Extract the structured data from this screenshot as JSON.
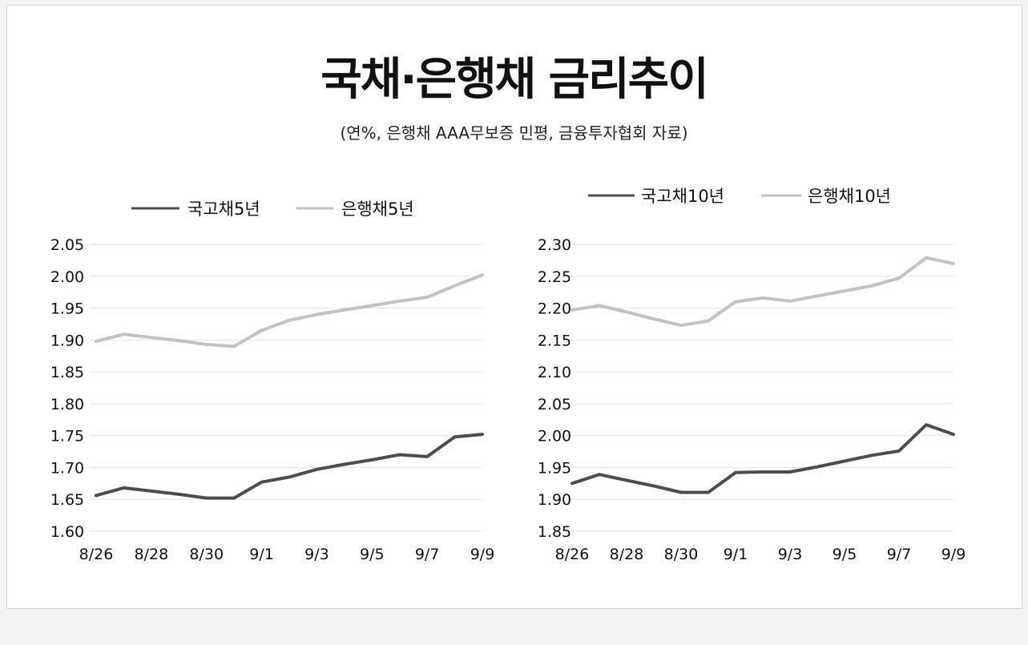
{
  "title": "국채·은행채 금리추이",
  "subtitle": "(연%, 은행채 AAA무보증 민평, 금융투자협회 자료)",
  "colors": {
    "dark": "#4d4d4d",
    "light": "#c2c2c2",
    "grid": "#e3e3e3"
  },
  "chart_data": [
    {
      "type": "line",
      "x": [
        "8/26",
        "8/27",
        "8/28",
        "8/29",
        "8/30",
        "8/31",
        "9/1",
        "9/2",
        "9/3",
        "9/4",
        "9/5",
        "9/6",
        "9/7",
        "9/8",
        "9/9"
      ],
      "xticks": [
        "8/26",
        "8/28",
        "8/30",
        "9/1",
        "9/3",
        "9/5",
        "9/7",
        "9/9"
      ],
      "yticks": [
        "2.05",
        "2.00",
        "1.95",
        "1.90",
        "1.85",
        "1.80",
        "1.75",
        "1.70",
        "1.65",
        "1.60"
      ],
      "ylim": [
        1.6,
        2.05
      ],
      "series": [
        {
          "name": "국고채5년",
          "color": "dark",
          "values": [
            1.656,
            1.668,
            1.663,
            1.658,
            1.652,
            1.652,
            1.677,
            1.685,
            1.697,
            1.705,
            1.712,
            1.72,
            1.717,
            1.748,
            1.752
          ]
        },
        {
          "name": "은행채5년",
          "color": "light",
          "values": [
            1.898,
            1.909,
            1.904,
            1.899,
            1.893,
            1.89,
            1.915,
            1.931,
            1.94,
            1.947,
            1.954,
            1.961,
            1.967,
            1.985,
            2.002
          ]
        }
      ]
    },
    {
      "type": "line",
      "x": [
        "8/26",
        "8/27",
        "8/28",
        "8/29",
        "8/30",
        "8/31",
        "9/1",
        "9/2",
        "9/3",
        "9/4",
        "9/5",
        "9/6",
        "9/7",
        "9/8",
        "9/9"
      ],
      "xticks": [
        "8/26",
        "8/28",
        "8/30",
        "9/1",
        "9/3",
        "9/5",
        "9/7",
        "9/9"
      ],
      "yticks": [
        "2.30",
        "2.25",
        "2.20",
        "2.15",
        "2.10",
        "2.05",
        "2.00",
        "1.95",
        "1.90",
        "1.85"
      ],
      "ylim": [
        1.85,
        2.3
      ],
      "series": [
        {
          "name": "국고채10년",
          "color": "dark",
          "values": [
            1.925,
            1.939,
            1.93,
            1.921,
            1.911,
            1.911,
            1.942,
            1.943,
            1.943,
            1.951,
            1.96,
            1.969,
            1.976,
            2.017,
            2.002
          ]
        },
        {
          "name": "은행채10년",
          "color": "light",
          "values": [
            2.197,
            2.204,
            2.194,
            2.183,
            2.173,
            2.18,
            2.21,
            2.216,
            2.211,
            2.219,
            2.227,
            2.235,
            2.247,
            2.279,
            2.27
          ]
        }
      ]
    }
  ]
}
